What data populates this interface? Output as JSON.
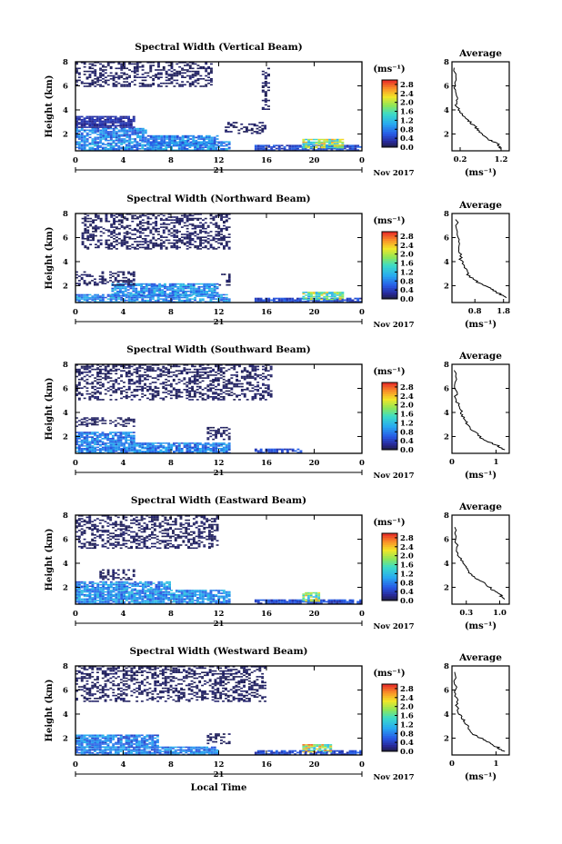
{
  "chart_data": [
    {
      "type": "heatmap",
      "title": "Spectral Width (Vertical Beam)",
      "xlabel": "",
      "ylabel": "Height (km)",
      "x_ticks": [
        "0",
        "4",
        "8",
        "12",
        "16",
        "20",
        "0"
      ],
      "y_ticks": [
        "2",
        "4",
        "6",
        "8"
      ],
      "xlim": [
        0,
        24
      ],
      "ylim": [
        0.6,
        8
      ],
      "date_day": "21",
      "date_month": "Nov 2017",
      "colorbar": {
        "unit": "(ms⁻¹)",
        "ticks": [
          "0.0",
          "0.4",
          "0.8",
          "1.2",
          "1.6",
          "2.0",
          "2.4",
          "2.8"
        ],
        "range": [
          0,
          3.0
        ]
      },
      "profile": {
        "title": "Average",
        "xlabel": "(ms⁻¹)",
        "x_ticks": [
          "0.2",
          "1.2"
        ],
        "xlim": [
          0,
          1.4
        ],
        "points": [
          [
            1.2,
            0.8
          ],
          [
            1.1,
            1.2
          ],
          [
            0.9,
            1.5
          ],
          [
            0.75,
            2.0
          ],
          [
            0.6,
            2.5
          ],
          [
            0.45,
            3.0
          ],
          [
            0.3,
            3.4
          ],
          [
            0.2,
            3.8
          ],
          [
            0.12,
            4.4
          ],
          [
            0.1,
            5.0
          ],
          [
            0.08,
            6.0
          ],
          [
            0.08,
            7.5
          ]
        ]
      },
      "regions": [
        {
          "x": [
            0,
            13
          ],
          "y": [
            0.6,
            1.4
          ],
          "value": 0.9
        },
        {
          "x": [
            0,
            6
          ],
          "y": [
            1.4,
            2.5
          ],
          "value": 0.8
        },
        {
          "x": [
            6,
            12
          ],
          "y": [
            1.0,
            1.9
          ],
          "value": 0.8
        },
        {
          "x": [
            0,
            5
          ],
          "y": [
            2.5,
            3.5
          ],
          "value": 0.3
        },
        {
          "x": [
            12.5,
            16
          ],
          "y": [
            2.0,
            3.0
          ],
          "value": 0.1
        },
        {
          "x": [
            15,
            24
          ],
          "y": [
            0.6,
            1.1
          ],
          "value": 0.5
        },
        {
          "x": [
            19,
            22.5
          ],
          "y": [
            0.8,
            1.6
          ],
          "value": 1.8
        },
        {
          "x": [
            0,
            11.5
          ],
          "y": [
            5.9,
            8.0
          ],
          "value": 0.1
        },
        {
          "x": [
            15.6,
            16.3
          ],
          "y": [
            4.0,
            7.5
          ],
          "value": 0.1
        }
      ]
    },
    {
      "type": "heatmap",
      "title": "Spectral Width (Northward Beam)",
      "xlabel": "",
      "ylabel": "Height (km)",
      "x_ticks": [
        "0",
        "4",
        "8",
        "12",
        "16",
        "20",
        "0"
      ],
      "y_ticks": [
        "2",
        "4",
        "6",
        "8"
      ],
      "xlim": [
        0,
        24
      ],
      "ylim": [
        0.6,
        8
      ],
      "date_day": "21",
      "date_month": "Nov 2017",
      "colorbar": {
        "unit": "(ms⁻¹)",
        "ticks": [
          "0.0",
          "0.4",
          "0.8",
          "1.2",
          "1.6",
          "2.0",
          "2.4",
          "2.8"
        ],
        "range": [
          0,
          3.0
        ]
      },
      "profile": {
        "title": "Average",
        "xlabel": "(ms⁻¹)",
        "x_ticks": [
          "0.8",
          "1.8"
        ],
        "xlim": [
          0,
          2.0
        ],
        "points": [
          [
            1.9,
            1.0
          ],
          [
            1.6,
            1.4
          ],
          [
            1.3,
            1.8
          ],
          [
            0.9,
            2.3
          ],
          [
            0.6,
            2.8
          ],
          [
            0.45,
            3.5
          ],
          [
            0.3,
            4.2
          ],
          [
            0.25,
            5.0
          ],
          [
            0.2,
            6.0
          ],
          [
            0.18,
            7.5
          ]
        ]
      },
      "regions": [
        {
          "x": [
            0,
            13
          ],
          "y": [
            0.6,
            1.3
          ],
          "value": 0.9
        },
        {
          "x": [
            3,
            12
          ],
          "y": [
            1.1,
            2.2
          ],
          "value": 0.9
        },
        {
          "x": [
            0,
            5
          ],
          "y": [
            2.0,
            3.2
          ],
          "value": 0.1
        },
        {
          "x": [
            12,
            13
          ],
          "y": [
            2.0,
            3.0
          ],
          "value": 0.1
        },
        {
          "x": [
            15,
            24
          ],
          "y": [
            0.6,
            1.0
          ],
          "value": 0.5
        },
        {
          "x": [
            19,
            22.5
          ],
          "y": [
            0.8,
            1.5
          ],
          "value": 1.7
        },
        {
          "x": [
            0.5,
            13
          ],
          "y": [
            5.0,
            8.0
          ],
          "value": 0.1
        }
      ]
    },
    {
      "type": "heatmap",
      "title": "Spectral Width (Southward Beam)",
      "xlabel": "",
      "ylabel": "Height (km)",
      "x_ticks": [
        "0",
        "4",
        "8",
        "12",
        "16",
        "20",
        "0"
      ],
      "y_ticks": [
        "2",
        "4",
        "6",
        "8"
      ],
      "xlim": [
        0,
        24
      ],
      "ylim": [
        0.6,
        8
      ],
      "date_day": "21",
      "date_month": "Nov 2017",
      "colorbar": {
        "unit": "(ms⁻¹)",
        "ticks": [
          "0.0",
          "0.4",
          "0.8",
          "1.2",
          "1.6",
          "2.0",
          "2.4",
          "2.8"
        ],
        "range": [
          0,
          3.0
        ]
      },
      "profile": {
        "title": "Average",
        "xlabel": "(ms⁻¹)",
        "x_ticks": [
          "0",
          "1"
        ],
        "xlim": [
          0,
          1.3
        ],
        "points": [
          [
            1.2,
            0.9
          ],
          [
            1.0,
            1.3
          ],
          [
            0.7,
            1.8
          ],
          [
            0.5,
            2.4
          ],
          [
            0.35,
            3.0
          ],
          [
            0.25,
            3.6
          ],
          [
            0.2,
            4.2
          ],
          [
            0.1,
            5.0
          ],
          [
            0.08,
            6.0
          ],
          [
            0.08,
            7.5
          ]
        ]
      },
      "regions": [
        {
          "x": [
            0,
            13
          ],
          "y": [
            0.6,
            1.5
          ],
          "value": 0.8
        },
        {
          "x": [
            0,
            5
          ],
          "y": [
            1.5,
            2.4
          ],
          "value": 0.8
        },
        {
          "x": [
            0,
            5
          ],
          "y": [
            2.8,
            3.6
          ],
          "value": 0.1
        },
        {
          "x": [
            11,
            13
          ],
          "y": [
            1.7,
            2.8
          ],
          "value": 0.1
        },
        {
          "x": [
            15,
            19
          ],
          "y": [
            0.6,
            1.0
          ],
          "value": 0.5
        },
        {
          "x": [
            0,
            16.5
          ],
          "y": [
            5.0,
            8.0
          ],
          "value": 0.1
        }
      ]
    },
    {
      "type": "heatmap",
      "title": "Spectral Width (Eastward Beam)",
      "xlabel": "",
      "ylabel": "Height (km)",
      "x_ticks": [
        "0",
        "4",
        "8",
        "12",
        "16",
        "20",
        "0"
      ],
      "y_ticks": [
        "2",
        "4",
        "6",
        "8"
      ],
      "xlim": [
        0,
        24
      ],
      "ylim": [
        0.6,
        8
      ],
      "date_day": "21",
      "date_month": "Nov 2017",
      "colorbar": {
        "unit": "(ms⁻¹)",
        "ticks": [
          "0.0",
          "0.4",
          "0.8",
          "1.2",
          "1.6",
          "2.0",
          "2.4",
          "2.8"
        ],
        "range": [
          0,
          3.0
        ]
      },
      "profile": {
        "title": "Average",
        "xlabel": "(ms⁻¹)",
        "x_ticks": [
          "0.3",
          "1.0"
        ],
        "xlim": [
          0,
          1.2
        ],
        "points": [
          [
            1.1,
            1.0
          ],
          [
            1.0,
            1.4
          ],
          [
            0.85,
            1.8
          ],
          [
            0.7,
            2.3
          ],
          [
            0.5,
            2.8
          ],
          [
            0.35,
            3.3
          ],
          [
            0.25,
            3.8
          ],
          [
            0.15,
            4.5
          ],
          [
            0.1,
            5.5
          ],
          [
            0.08,
            7.0
          ]
        ]
      },
      "regions": [
        {
          "x": [
            0,
            13
          ],
          "y": [
            0.6,
            1.8
          ],
          "value": 0.9
        },
        {
          "x": [
            0,
            8
          ],
          "y": [
            1.8,
            2.5
          ],
          "value": 0.9
        },
        {
          "x": [
            2,
            5
          ],
          "y": [
            2.6,
            3.5
          ],
          "value": 0.1
        },
        {
          "x": [
            15,
            24
          ],
          "y": [
            0.6,
            1.0
          ],
          "value": 0.5
        },
        {
          "x": [
            19,
            20.5
          ],
          "y": [
            0.8,
            1.6
          ],
          "value": 1.8
        },
        {
          "x": [
            0,
            12
          ],
          "y": [
            5.2,
            8.0
          ],
          "value": 0.1
        }
      ]
    },
    {
      "type": "heatmap",
      "title": "Spectral Width (Westward Beam)",
      "xlabel": "Local Time",
      "ylabel": "Height (km)",
      "x_ticks": [
        "0",
        "4",
        "8",
        "12",
        "16",
        "20",
        "0"
      ],
      "y_ticks": [
        "2",
        "4",
        "6",
        "8"
      ],
      "xlim": [
        0,
        24
      ],
      "ylim": [
        0.6,
        8
      ],
      "date_day": "21",
      "date_month": "Nov 2017",
      "colorbar": {
        "unit": "(ms⁻¹)",
        "ticks": [
          "0.0",
          "0.4",
          "0.8",
          "1.2",
          "1.6",
          "2.0",
          "2.4",
          "2.8"
        ],
        "range": [
          0,
          3.0
        ]
      },
      "profile": {
        "title": "Average",
        "xlabel": "(ms⁻¹)",
        "x_ticks": [
          "0",
          "1"
        ],
        "xlim": [
          0,
          1.3
        ],
        "points": [
          [
            1.2,
            0.9
          ],
          [
            1.0,
            1.3
          ],
          [
            0.75,
            1.8
          ],
          [
            0.5,
            2.3
          ],
          [
            0.35,
            3.0
          ],
          [
            0.25,
            3.6
          ],
          [
            0.15,
            4.2
          ],
          [
            0.1,
            5.0
          ],
          [
            0.08,
            6.0
          ],
          [
            0.08,
            7.5
          ]
        ]
      },
      "regions": [
        {
          "x": [
            0,
            12
          ],
          "y": [
            0.6,
            1.3
          ],
          "value": 0.8
        },
        {
          "x": [
            0,
            7
          ],
          "y": [
            1.2,
            2.3
          ],
          "value": 0.8
        },
        {
          "x": [
            11,
            13
          ],
          "y": [
            1.5,
            2.4
          ],
          "value": 0.1
        },
        {
          "x": [
            15,
            24
          ],
          "y": [
            0.6,
            1.0
          ],
          "value": 0.5
        },
        {
          "x": [
            19,
            21.5
          ],
          "y": [
            0.8,
            1.5
          ],
          "value": 2.0
        },
        {
          "x": [
            0,
            16
          ],
          "y": [
            5.0,
            8.0
          ],
          "value": 0.1
        }
      ]
    }
  ]
}
